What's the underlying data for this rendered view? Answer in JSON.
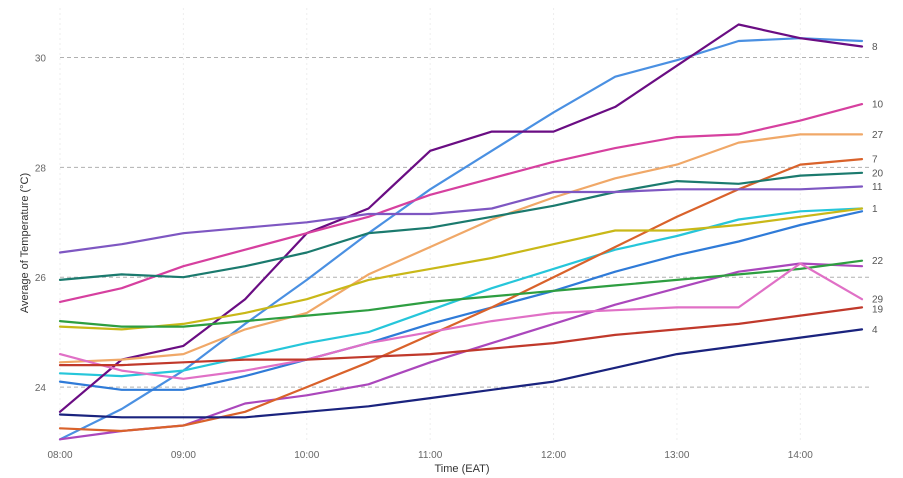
{
  "chart_data": {
    "type": "line",
    "xlabel": "Time (EAT)",
    "ylabel": "Average of Temperature (°C)",
    "x": [
      "08:00",
      "08:30",
      "09:00",
      "09:30",
      "10:00",
      "10:30",
      "11:00",
      "11:30",
      "12:00",
      "12:30",
      "13:00",
      "13:30",
      "14:00",
      "14:30"
    ],
    "x_ticks": [
      "08:00",
      "09:00",
      "10:00",
      "11:00",
      "12:00",
      "13:00",
      "14:00"
    ],
    "y_ticks": [
      24,
      26,
      28,
      30
    ],
    "ylim": [
      23,
      30.9
    ],
    "grid": "horizontal dashed",
    "series": [
      {
        "name": "8",
        "color": "#6a0d83",
        "values": [
          23.55,
          24.5,
          24.75,
          25.6,
          26.8,
          27.25,
          28.3,
          28.65,
          28.65,
          29.1,
          29.85,
          30.6,
          30.35,
          30.2
        ]
      },
      {
        "name": "10",
        "color": "#d6409f",
        "values": [
          25.55,
          25.8,
          26.2,
          26.5,
          26.8,
          27.1,
          27.5,
          27.8,
          28.1,
          28.35,
          28.55,
          28.6,
          28.85,
          29.15
        ]
      },
      {
        "name": "27",
        "color": "#f0a868",
        "values": [
          24.45,
          24.5,
          24.6,
          25.05,
          25.35,
          26.05,
          26.55,
          27.05,
          27.45,
          27.8,
          28.05,
          28.45,
          28.6,
          28.6
        ]
      },
      {
        "name": "7",
        "color": "#d9622b",
        "values": [
          23.25,
          23.2,
          23.3,
          23.55,
          24.0,
          24.45,
          24.95,
          25.45,
          26.0,
          26.55,
          27.1,
          27.6,
          28.05,
          28.15
        ]
      },
      {
        "name": "20",
        "color": "#1b7a6e",
        "values": [
          25.95,
          26.05,
          26.0,
          26.2,
          26.45,
          26.8,
          26.9,
          27.1,
          27.3,
          27.55,
          27.75,
          27.7,
          27.85,
          27.9
        ]
      },
      {
        "name": "11",
        "color": "#7e57c2",
        "values": [
          26.45,
          26.6,
          26.8,
          26.9,
          27.0,
          27.15,
          27.15,
          27.25,
          27.55,
          27.55,
          27.6,
          27.6,
          27.6,
          27.65
        ]
      },
      {
        "name": "1",
        "color": "#c9b818",
        "values": [
          25.1,
          25.05,
          25.15,
          25.35,
          25.6,
          25.95,
          26.15,
          26.35,
          26.6,
          26.85,
          26.85,
          26.95,
          27.1,
          27.25
        ]
      },
      {
        "name": "22",
        "color": "#2e9e41",
        "values": [
          25.2,
          25.1,
          25.1,
          25.2,
          25.3,
          25.4,
          25.55,
          25.65,
          25.75,
          25.85,
          25.95,
          26.05,
          26.15,
          26.3
        ]
      },
      {
        "name": "29",
        "color": "#e070c6",
        "values": [
          24.6,
          24.3,
          24.15,
          24.3,
          24.5,
          24.8,
          25.0,
          25.2,
          25.35,
          25.4,
          25.45,
          25.45,
          26.25,
          25.6
        ]
      },
      {
        "name": "19",
        "color": "#c0392b",
        "values": [
          24.4,
          24.4,
          24.45,
          24.5,
          24.5,
          24.55,
          24.6,
          24.7,
          24.8,
          24.95,
          25.05,
          25.15,
          25.3,
          25.45
        ]
      },
      {
        "name": "4",
        "color": "#1a237e",
        "values": [
          23.5,
          23.45,
          23.45,
          23.45,
          23.55,
          23.65,
          23.8,
          23.95,
          24.1,
          24.35,
          24.6,
          24.75,
          24.9,
          25.05
        ]
      },
      {
        "name": "",
        "color": "#4a90e2",
        "values": [
          23.05,
          23.6,
          24.3,
          25.15,
          25.95,
          26.8,
          27.6,
          28.3,
          29.0,
          29.65,
          29.95,
          30.3,
          30.35,
          30.3
        ]
      },
      {
        "name": "",
        "color": "#26c6da",
        "values": [
          24.25,
          24.2,
          24.3,
          24.55,
          24.8,
          25.0,
          25.4,
          25.8,
          26.15,
          26.5,
          26.75,
          27.05,
          27.2,
          27.25
        ]
      },
      {
        "name": "",
        "color": "#2f7bd8",
        "values": [
          24.1,
          23.95,
          23.95,
          24.2,
          24.5,
          24.8,
          25.15,
          25.45,
          25.75,
          26.1,
          26.4,
          26.65,
          26.95,
          27.2
        ]
      },
      {
        "name": "",
        "color": "#ab47bc",
        "values": [
          23.05,
          23.2,
          23.3,
          23.7,
          23.85,
          24.05,
          24.45,
          24.8,
          25.15,
          25.5,
          25.8,
          26.1,
          26.25,
          26.2
        ]
      }
    ]
  }
}
